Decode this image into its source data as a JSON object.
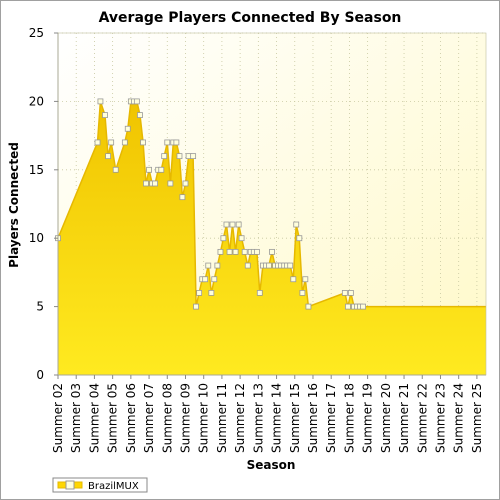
{
  "chart_data": {
    "type": "area",
    "title": "Average Players Connected By Season",
    "xlabel": "Season",
    "ylabel": "Players Connected",
    "ylim": [
      0,
      25
    ],
    "yticks": [
      0,
      5,
      10,
      15,
      20,
      25
    ],
    "x_range": [
      2,
      25.5
    ],
    "categories": [
      "Summer 02",
      "Summer 03",
      "Summer 04",
      "Summer 05",
      "Summer 06",
      "Summer 07",
      "Summer 08",
      "Summer 09",
      "Summer 10",
      "Summer 11",
      "Summer 12",
      "Summer 13",
      "Summer 14",
      "Summer 15",
      "Summer 16",
      "Summer 17",
      "Summer 18",
      "Summer 19",
      "Summer 20",
      "Summer 21",
      "Summer 22",
      "Summer 23",
      "Summer 24",
      "Summer 25"
    ],
    "grid": true,
    "legend_position": "bottom-left",
    "colors": {
      "fill": "#ffd700",
      "line": "#e6b800",
      "marker_fill": "#ffffdd",
      "marker_stroke": "#999999",
      "plot_bg_top": "#fffad0",
      "plot_bg_bottom": "#ffffff"
    },
    "series": [
      {
        "name": "BrazilMUX",
        "points": [
          [
            2.0,
            10
          ],
          [
            4.17,
            17
          ],
          [
            4.33,
            20
          ],
          [
            4.58,
            19
          ],
          [
            4.75,
            16
          ],
          [
            4.92,
            17
          ],
          [
            5.17,
            15
          ],
          [
            5.67,
            17
          ],
          [
            5.83,
            18
          ],
          [
            6.0,
            20
          ],
          [
            6.17,
            20
          ],
          [
            6.33,
            20
          ],
          [
            6.5,
            19
          ],
          [
            6.67,
            17
          ],
          [
            6.83,
            14
          ],
          [
            7.0,
            15
          ],
          [
            7.17,
            14
          ],
          [
            7.33,
            14
          ],
          [
            7.5,
            15
          ],
          [
            7.67,
            15
          ],
          [
            7.83,
            16
          ],
          [
            8.0,
            17
          ],
          [
            8.17,
            14
          ],
          [
            8.33,
            17
          ],
          [
            8.5,
            17
          ],
          [
            8.67,
            16
          ],
          [
            8.83,
            13
          ],
          [
            9.0,
            14
          ],
          [
            9.17,
            16
          ],
          [
            9.42,
            16
          ],
          [
            9.58,
            5
          ],
          [
            9.75,
            6
          ],
          [
            9.92,
            7
          ],
          [
            10.08,
            7
          ],
          [
            10.25,
            8
          ],
          [
            10.42,
            6
          ],
          [
            10.58,
            7
          ],
          [
            10.75,
            8
          ],
          [
            10.92,
            9
          ],
          [
            11.08,
            10
          ],
          [
            11.25,
            11
          ],
          [
            11.42,
            9
          ],
          [
            11.58,
            11
          ],
          [
            11.75,
            9
          ],
          [
            11.92,
            11
          ],
          [
            12.08,
            10
          ],
          [
            12.25,
            9
          ],
          [
            12.42,
            8
          ],
          [
            12.58,
            9
          ],
          [
            12.75,
            9
          ],
          [
            12.92,
            9
          ],
          [
            13.08,
            6
          ],
          [
            13.25,
            8
          ],
          [
            13.42,
            8
          ],
          [
            13.58,
            8
          ],
          [
            13.75,
            9
          ],
          [
            13.92,
            8
          ],
          [
            14.08,
            8
          ],
          [
            14.25,
            8
          ],
          [
            14.42,
            8
          ],
          [
            14.58,
            8
          ],
          [
            14.75,
            8
          ],
          [
            14.92,
            7
          ],
          [
            15.08,
            11
          ],
          [
            15.25,
            10
          ],
          [
            15.42,
            6
          ],
          [
            15.58,
            7
          ],
          [
            15.75,
            5
          ],
          [
            17.75,
            6
          ],
          [
            17.92,
            5
          ],
          [
            18.08,
            6
          ],
          [
            18.25,
            5
          ],
          [
            18.42,
            5
          ],
          [
            18.58,
            5
          ],
          [
            18.75,
            5
          ]
        ]
      }
    ]
  }
}
